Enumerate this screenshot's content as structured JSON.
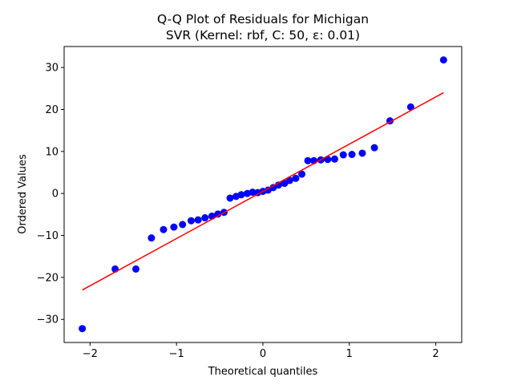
{
  "chart_data": {
    "type": "scatter",
    "title_line1": "Q-Q Plot of Residuals for Michigan",
    "title_line2": "SVR (Kernel: rbf, C: 50, ε: 0.01)",
    "xlabel": "Theoretical quantiles",
    "ylabel": "Ordered Values",
    "xlim": [
      -2.3,
      2.3
    ],
    "ylim": [
      -35.5,
      35.0
    ],
    "xticks": [
      -2,
      -1,
      0,
      1,
      2
    ],
    "yticks": [
      -30,
      -20,
      -10,
      0,
      10,
      20,
      30
    ],
    "xtick_labels": [
      "−2",
      "−1",
      "0",
      "1",
      "2"
    ],
    "ytick_labels": [
      "−30",
      "−20",
      "−10",
      "0",
      "10",
      "20",
      "30"
    ],
    "grid": false,
    "points": {
      "color": "#0000ff",
      "x": [
        -2.09,
        -1.71,
        -1.47,
        -1.29,
        -1.15,
        -1.03,
        -0.93,
        -0.83,
        -0.75,
        -0.67,
        -0.59,
        -0.52,
        -0.45,
        -0.38,
        -0.31,
        -0.25,
        -0.18,
        -0.12,
        -0.06,
        0.0,
        0.06,
        0.12,
        0.18,
        0.25,
        0.31,
        0.38,
        0.45,
        0.52,
        0.59,
        0.67,
        0.75,
        0.83,
        0.93,
        1.03,
        1.15,
        1.29,
        1.47,
        1.71,
        2.09
      ],
      "y": [
        -32.2,
        -18.0,
        -18.0,
        -10.6,
        -8.6,
        -8.0,
        -7.4,
        -6.5,
        -6.3,
        -5.8,
        -5.4,
        -4.9,
        -4.5,
        -1.1,
        -0.7,
        -0.3,
        0.0,
        0.3,
        0.2,
        0.5,
        0.8,
        1.4,
        2.0,
        2.4,
        3.1,
        3.6,
        4.6,
        7.8,
        7.8,
        8.0,
        8.1,
        8.2,
        9.2,
        9.3,
        9.6,
        10.9,
        17.3,
        20.6,
        31.8
      ]
    },
    "fit_line": {
      "color": "#ff0000",
      "x": [
        -2.09,
        2.09
      ],
      "y": [
        -23.0,
        24.0
      ]
    }
  }
}
